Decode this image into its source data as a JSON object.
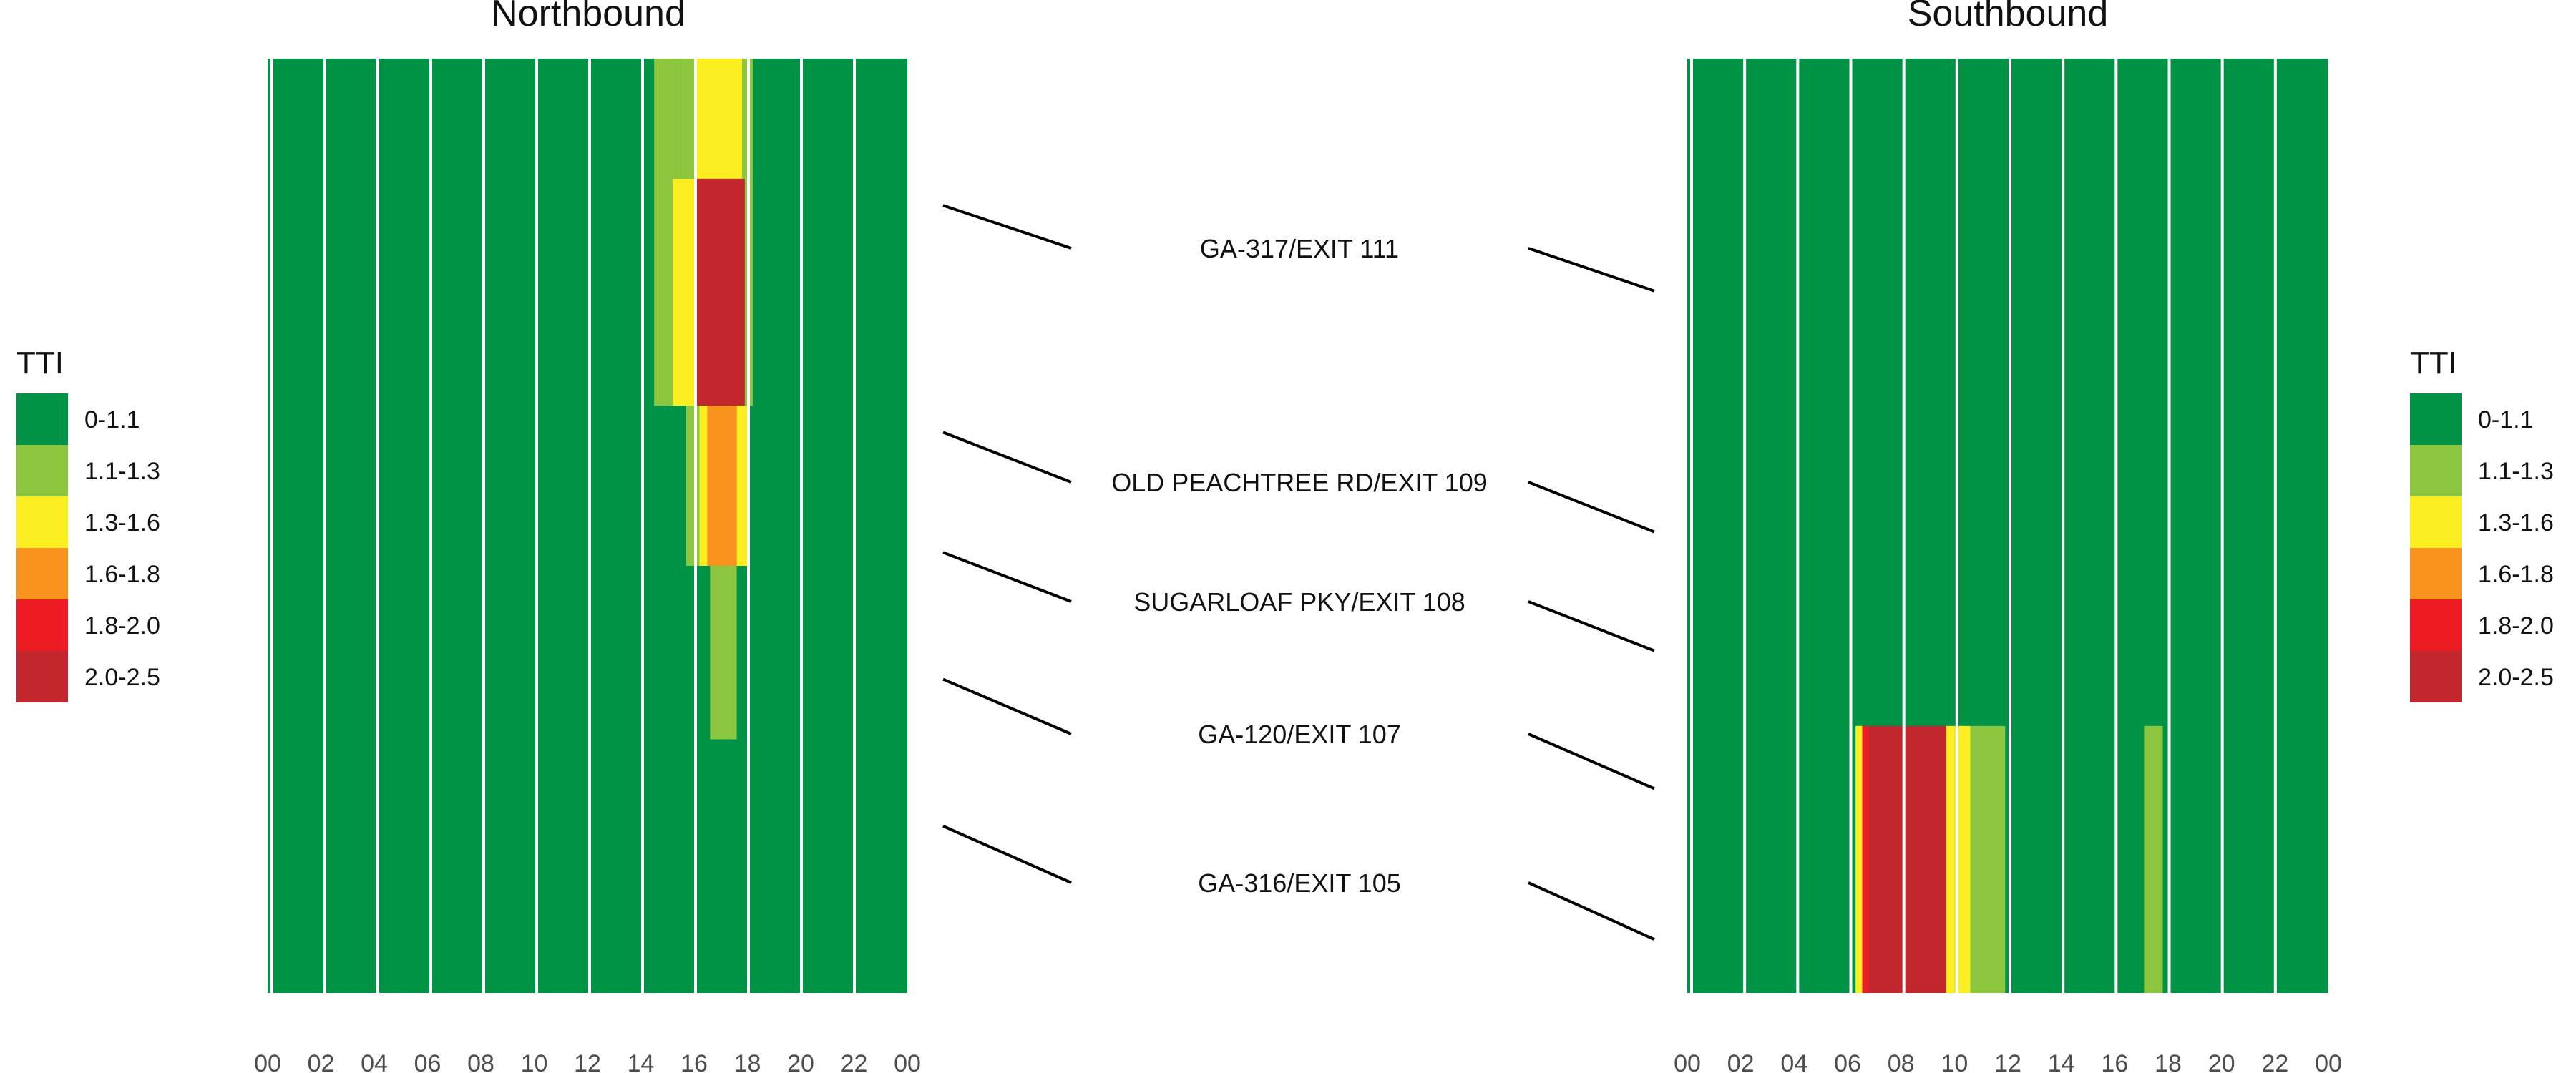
{
  "legend": {
    "title": "TTI",
    "categories": [
      {
        "label": "0-1.1",
        "color": "#009245"
      },
      {
        "label": "1.1-1.3",
        "color": "#8CC63F"
      },
      {
        "label": "1.3-1.6",
        "color": "#FCEE21"
      },
      {
        "label": "1.6-1.8",
        "color": "#F7931E"
      },
      {
        "label": "1.8-2.0",
        "color": "#ED1C24"
      },
      {
        "label": "2.0-2.5",
        "color": "#C1272D"
      }
    ]
  },
  "chart_data": [
    {
      "type": "heatmap",
      "title": "Northbound",
      "x_tick_labels": [
        "00",
        "02",
        "04",
        "06",
        "08",
        "10",
        "12",
        "14",
        "16",
        "18",
        "20",
        "22",
        "00"
      ],
      "xlim": [
        0,
        24
      ],
      "mile_range": [
        104.5,
        111.5
      ],
      "cells": [
        {
          "x": [
            14.5,
            15.5
          ],
          "mile": [
            108.9,
            111.5
          ],
          "category": 1
        },
        {
          "x": [
            15.5,
            16.0
          ],
          "mile": [
            108.9,
            111.5
          ],
          "category": 1
        },
        {
          "x": [
            16.0,
            17.8
          ],
          "mile": [
            110.6,
            111.5
          ],
          "category": 2
        },
        {
          "x": [
            17.8,
            18.2
          ],
          "mile": [
            108.9,
            111.5
          ],
          "category": 1
        },
        {
          "x": [
            15.2,
            16.0
          ],
          "mile": [
            108.9,
            110.6
          ],
          "category": 2
        },
        {
          "x": [
            16.0,
            17.9
          ],
          "mile": [
            108.9,
            110.6
          ],
          "category": 5
        },
        {
          "x": [
            15.7,
            16.2
          ],
          "mile": [
            107.7,
            108.9
          ],
          "category": 1
        },
        {
          "x": [
            16.2,
            16.5
          ],
          "mile": [
            107.7,
            108.9
          ],
          "category": 2
        },
        {
          "x": [
            16.5,
            17.6
          ],
          "mile": [
            107.7,
            108.9
          ],
          "category": 3
        },
        {
          "x": [
            17.6,
            18.0
          ],
          "mile": [
            107.7,
            108.9
          ],
          "category": 2
        },
        {
          "x": [
            16.6,
            17.6
          ],
          "mile": [
            106.4,
            107.7
          ],
          "category": 1
        }
      ]
    },
    {
      "type": "heatmap",
      "title": "Southbound",
      "x_tick_labels": [
        "00",
        "02",
        "04",
        "06",
        "08",
        "10",
        "12",
        "14",
        "16",
        "18",
        "20",
        "22",
        "00"
      ],
      "xlim": [
        0,
        24
      ],
      "mile_range": [
        104.5,
        111.5
      ],
      "cells": [
        {
          "x": [
            6.3,
            6.55
          ],
          "mile": [
            104.5,
            106.5
          ],
          "category": 2
        },
        {
          "x": [
            6.55,
            6.8
          ],
          "mile": [
            104.5,
            106.5
          ],
          "category": 4
        },
        {
          "x": [
            6.8,
            9.7
          ],
          "mile": [
            104.5,
            106.5
          ],
          "category": 5
        },
        {
          "x": [
            9.7,
            10.0
          ],
          "mile": [
            104.5,
            106.5
          ],
          "category": 2
        },
        {
          "x": [
            10.0,
            10.6
          ],
          "mile": [
            104.5,
            106.5
          ],
          "category": 2
        },
        {
          "x": [
            10.6,
            11.9
          ],
          "mile": [
            104.5,
            106.5
          ],
          "category": 1
        },
        {
          "x": [
            17.1,
            17.8
          ],
          "mile": [
            104.5,
            106.5
          ],
          "category": 1
        }
      ]
    }
  ],
  "interchanges": [
    {
      "label": "GA-317/EXIT 111",
      "mile": 110.4
    },
    {
      "label": "OLD PEACHTREE RD/EXIT 109",
      "mile": 108.7
    },
    {
      "label": "SUGARLOAF PKY/EXIT 108",
      "mile": 107.8
    },
    {
      "label": "GA-120/EXIT 107",
      "mile": 106.85
    },
    {
      "label": "GA-316/EXIT 105",
      "mile": 105.75
    }
  ]
}
